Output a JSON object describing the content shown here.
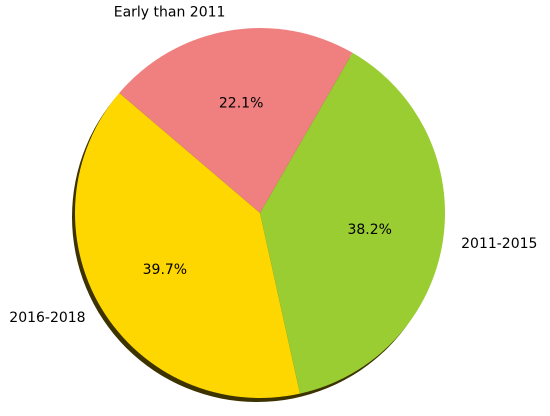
{
  "chart_data": {
    "type": "pie",
    "categories": [
      "Early than 2011",
      "2016-2018",
      "2011-2015"
    ],
    "values": [
      22.1,
      39.7,
      38.2
    ],
    "value_labels": [
      "22.1%",
      "39.7%",
      "38.2%"
    ],
    "colors": [
      "#f08080",
      "#ffd700",
      "#9acd32"
    ],
    "shadow": true
  }
}
